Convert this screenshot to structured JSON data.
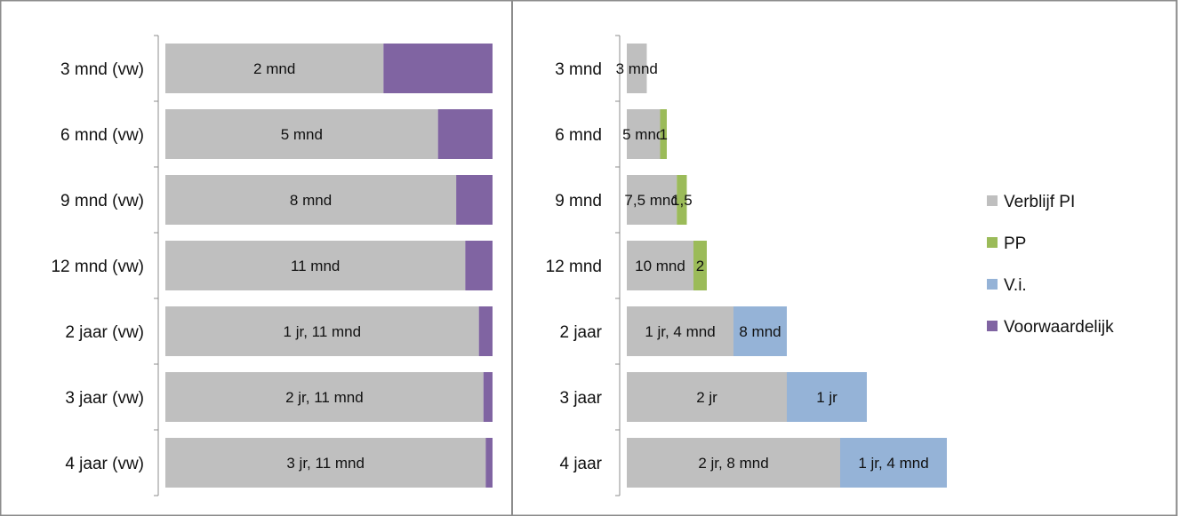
{
  "chart_data": [
    {
      "type": "bar",
      "orientation": "horizontal",
      "stacked": true,
      "normalized": true,
      "categories": [
        "3 mnd (vw)",
        "6 mnd (vw)",
        "9 mnd (vw)",
        "12 mnd (vw)",
        "2 jaar (vw)",
        "3 jaar (vw)",
        "4 jaar (vw)"
      ],
      "series": [
        {
          "name": "Verblijf PI",
          "color": "#BFBFBF",
          "values": [
            2,
            5,
            8,
            11,
            23,
            35,
            47
          ],
          "labels": [
            "2 mnd",
            "5 mnd",
            "8 mnd",
            "11 mnd",
            "1 jr, 11 mnd",
            "2 jr, 11 mnd",
            "3 jr, 11 mnd"
          ]
        },
        {
          "name": "Voorwaardelijk",
          "color": "#8064A2",
          "values": [
            1,
            1,
            1,
            1,
            1,
            1,
            1
          ],
          "labels": [
            "",
            "",
            "",
            "",
            "",
            "",
            ""
          ]
        }
      ]
    },
    {
      "type": "bar",
      "orientation": "horizontal",
      "stacked": true,
      "categories": [
        "3 mnd",
        "6 mnd",
        "9 mnd",
        "12 mnd",
        "2 jaar",
        "3 jaar",
        "4 jaar"
      ],
      "series": [
        {
          "name": "Verblijf PI",
          "color": "#BFBFBF",
          "values": [
            3,
            5,
            7.5,
            10,
            16,
            24,
            32
          ],
          "labels": [
            "3 mnd",
            "5 mnd",
            "7,5 mnd",
            "10 mnd",
            "1 jr, 4 mnd",
            "2 jr",
            "2 jr, 8 mnd"
          ]
        },
        {
          "name": "PP",
          "color": "#9BBB59",
          "values": [
            0,
            1,
            1.5,
            2,
            0,
            0,
            0
          ],
          "labels": [
            "",
            "1",
            "1,5",
            "2",
            "",
            "",
            ""
          ]
        },
        {
          "name": "V.i.",
          "color": "#95B3D7",
          "values": [
            0,
            0,
            0,
            0,
            8,
            12,
            16
          ],
          "labels": [
            "",
            "",
            "",
            "",
            "8 mnd",
            "1 jr",
            "1 jr, 4 mnd"
          ]
        }
      ]
    }
  ],
  "legend": {
    "items": [
      {
        "label": "Verblijf PI",
        "color": "#BFBFBF"
      },
      {
        "label": "PP",
        "color": "#9BBB59"
      },
      {
        "label": "V.i.",
        "color": "#95B3D7"
      },
      {
        "label": "Voorwaardelijk",
        "color": "#8064A2"
      }
    ]
  }
}
